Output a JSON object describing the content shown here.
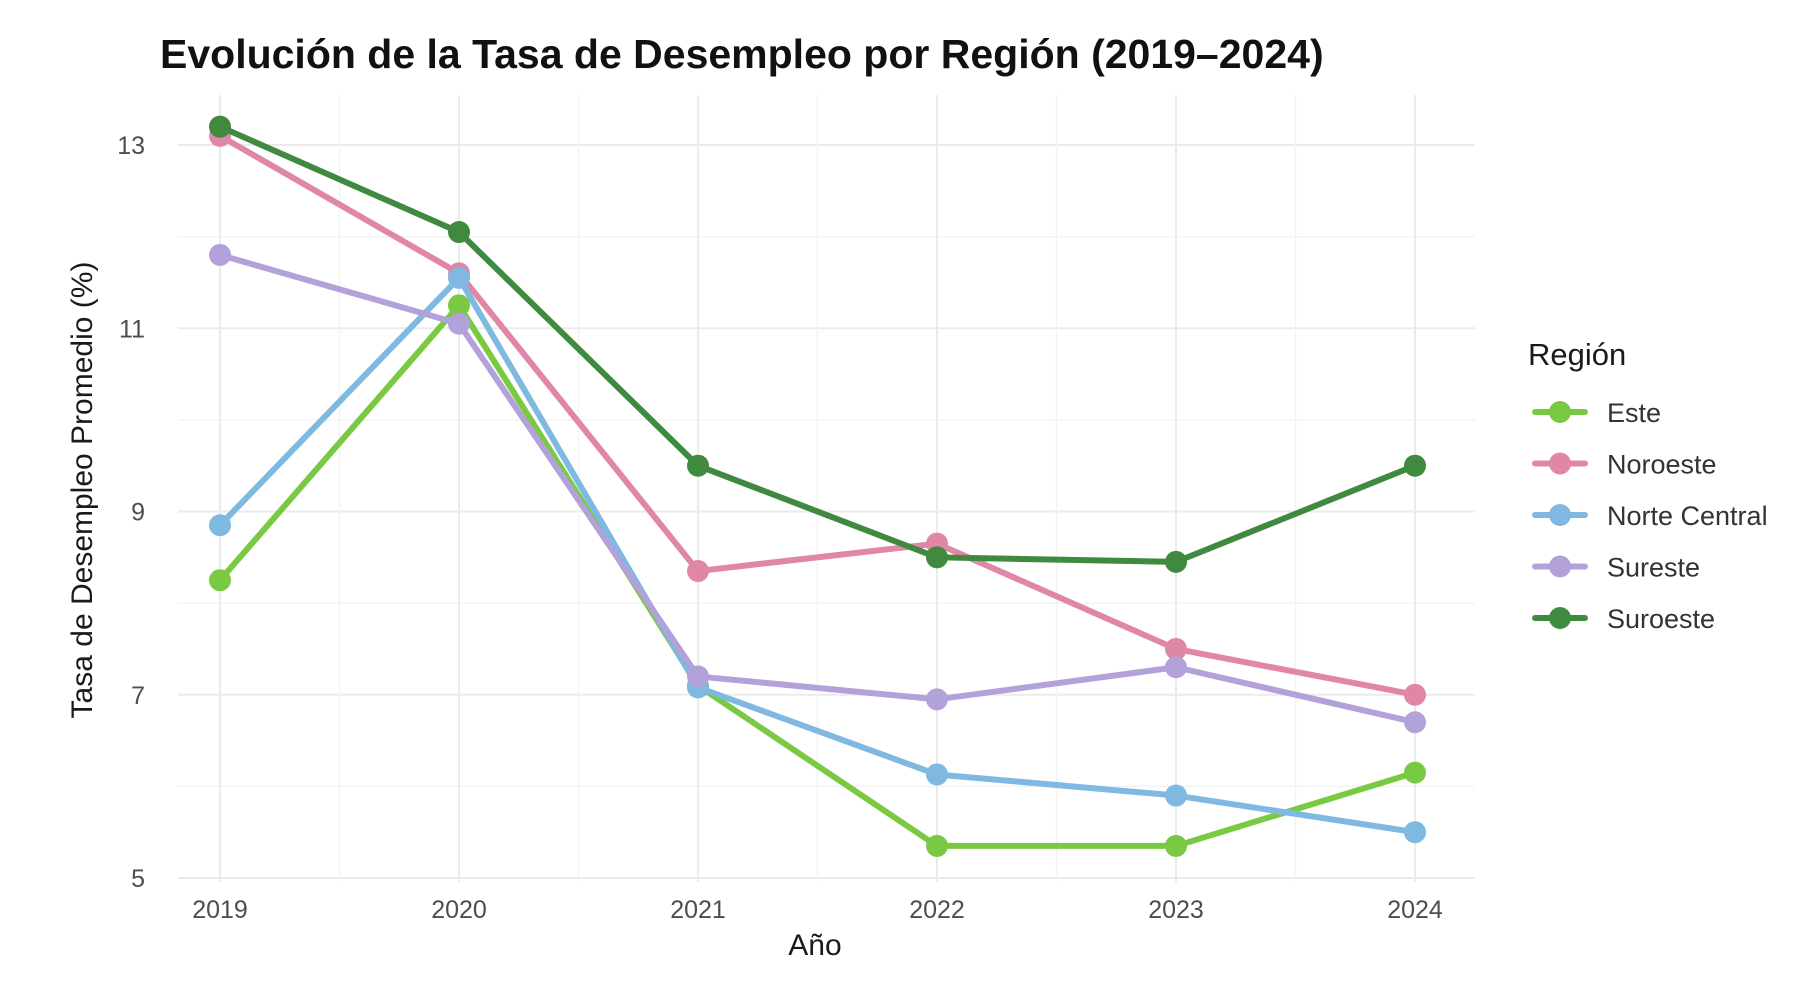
{
  "chart_data": {
    "type": "line",
    "title": "Evolución de la Tasa de Desempleo por Región (2019–2024)",
    "xlabel": "Año",
    "ylabel": "Tasa de Desempleo Promedio (%)",
    "x": [
      2019,
      2020,
      2021,
      2022,
      2023,
      2024
    ],
    "x_tick_labels": [
      "2019",
      "2020",
      "2021",
      "2022",
      "2023",
      "2024"
    ],
    "ylim": [
      5,
      13.2
    ],
    "y_ticks": [
      5,
      7,
      9,
      11,
      13
    ],
    "y_tick_labels": [
      "5",
      "7",
      "9",
      "11",
      "13"
    ],
    "grid": true,
    "legend": {
      "title": "Región",
      "placement": "right"
    },
    "series": [
      {
        "name": "Este",
        "color": "#7ac943",
        "values": [
          8.25,
          11.25,
          7.1,
          5.35,
          5.35,
          6.15
        ]
      },
      {
        "name": "Noroeste",
        "color": "#e087a8",
        "values": [
          13.1,
          11.6,
          8.35,
          8.65,
          7.5,
          7.0
        ]
      },
      {
        "name": "Norte Central",
        "color": "#7fb8e0",
        "values": [
          8.85,
          11.55,
          7.08,
          6.13,
          5.9,
          5.5
        ]
      },
      {
        "name": "Sureste",
        "color": "#b3a2da",
        "values": [
          11.8,
          11.05,
          7.2,
          6.95,
          7.3,
          6.7
        ]
      },
      {
        "name": "Suroeste",
        "color": "#3f8a3f",
        "values": [
          13.2,
          12.05,
          9.5,
          8.5,
          8.45,
          9.5
        ]
      }
    ]
  }
}
